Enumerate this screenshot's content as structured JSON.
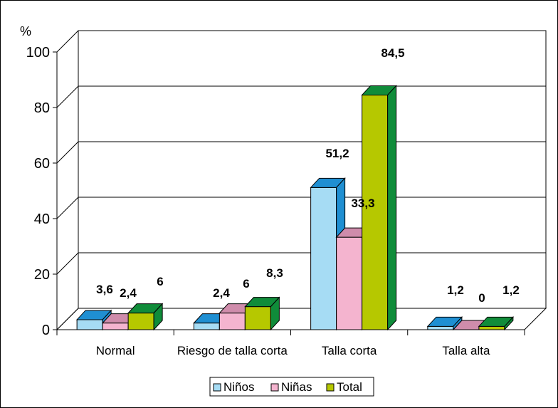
{
  "chart_data": {
    "type": "bar",
    "ylabel": "%",
    "ylim": [
      0,
      100
    ],
    "yticks": [
      "0",
      "20",
      "40",
      "60",
      "80",
      "100"
    ],
    "categories": [
      "Normal",
      "Riesgo de talla corta",
      "Talla corta",
      "Talla alta"
    ],
    "series": [
      {
        "name": "Niños",
        "values": [
          3.6,
          2.4,
          51.2,
          1.2
        ],
        "labels": [
          "3,6",
          "2,4",
          "51,2",
          "1,2"
        ],
        "color": "#a6dcf4",
        "side": "#1f8fd2"
      },
      {
        "name": "Niñas",
        "values": [
          2.4,
          6,
          33.3,
          0
        ],
        "labels": [
          "2,4",
          "6",
          "33,3",
          "0"
        ],
        "color": "#f4b4cf",
        "side": "#cf8cab"
      },
      {
        "name": "Total",
        "values": [
          6,
          8.3,
          84.5,
          1.2
        ],
        "labels": [
          "6",
          "8,3",
          "84,5",
          "1,2"
        ],
        "color": "#b6c800",
        "side": "#108c3a"
      }
    ],
    "grid": true,
    "legend": "bottom",
    "three_d": true
  }
}
